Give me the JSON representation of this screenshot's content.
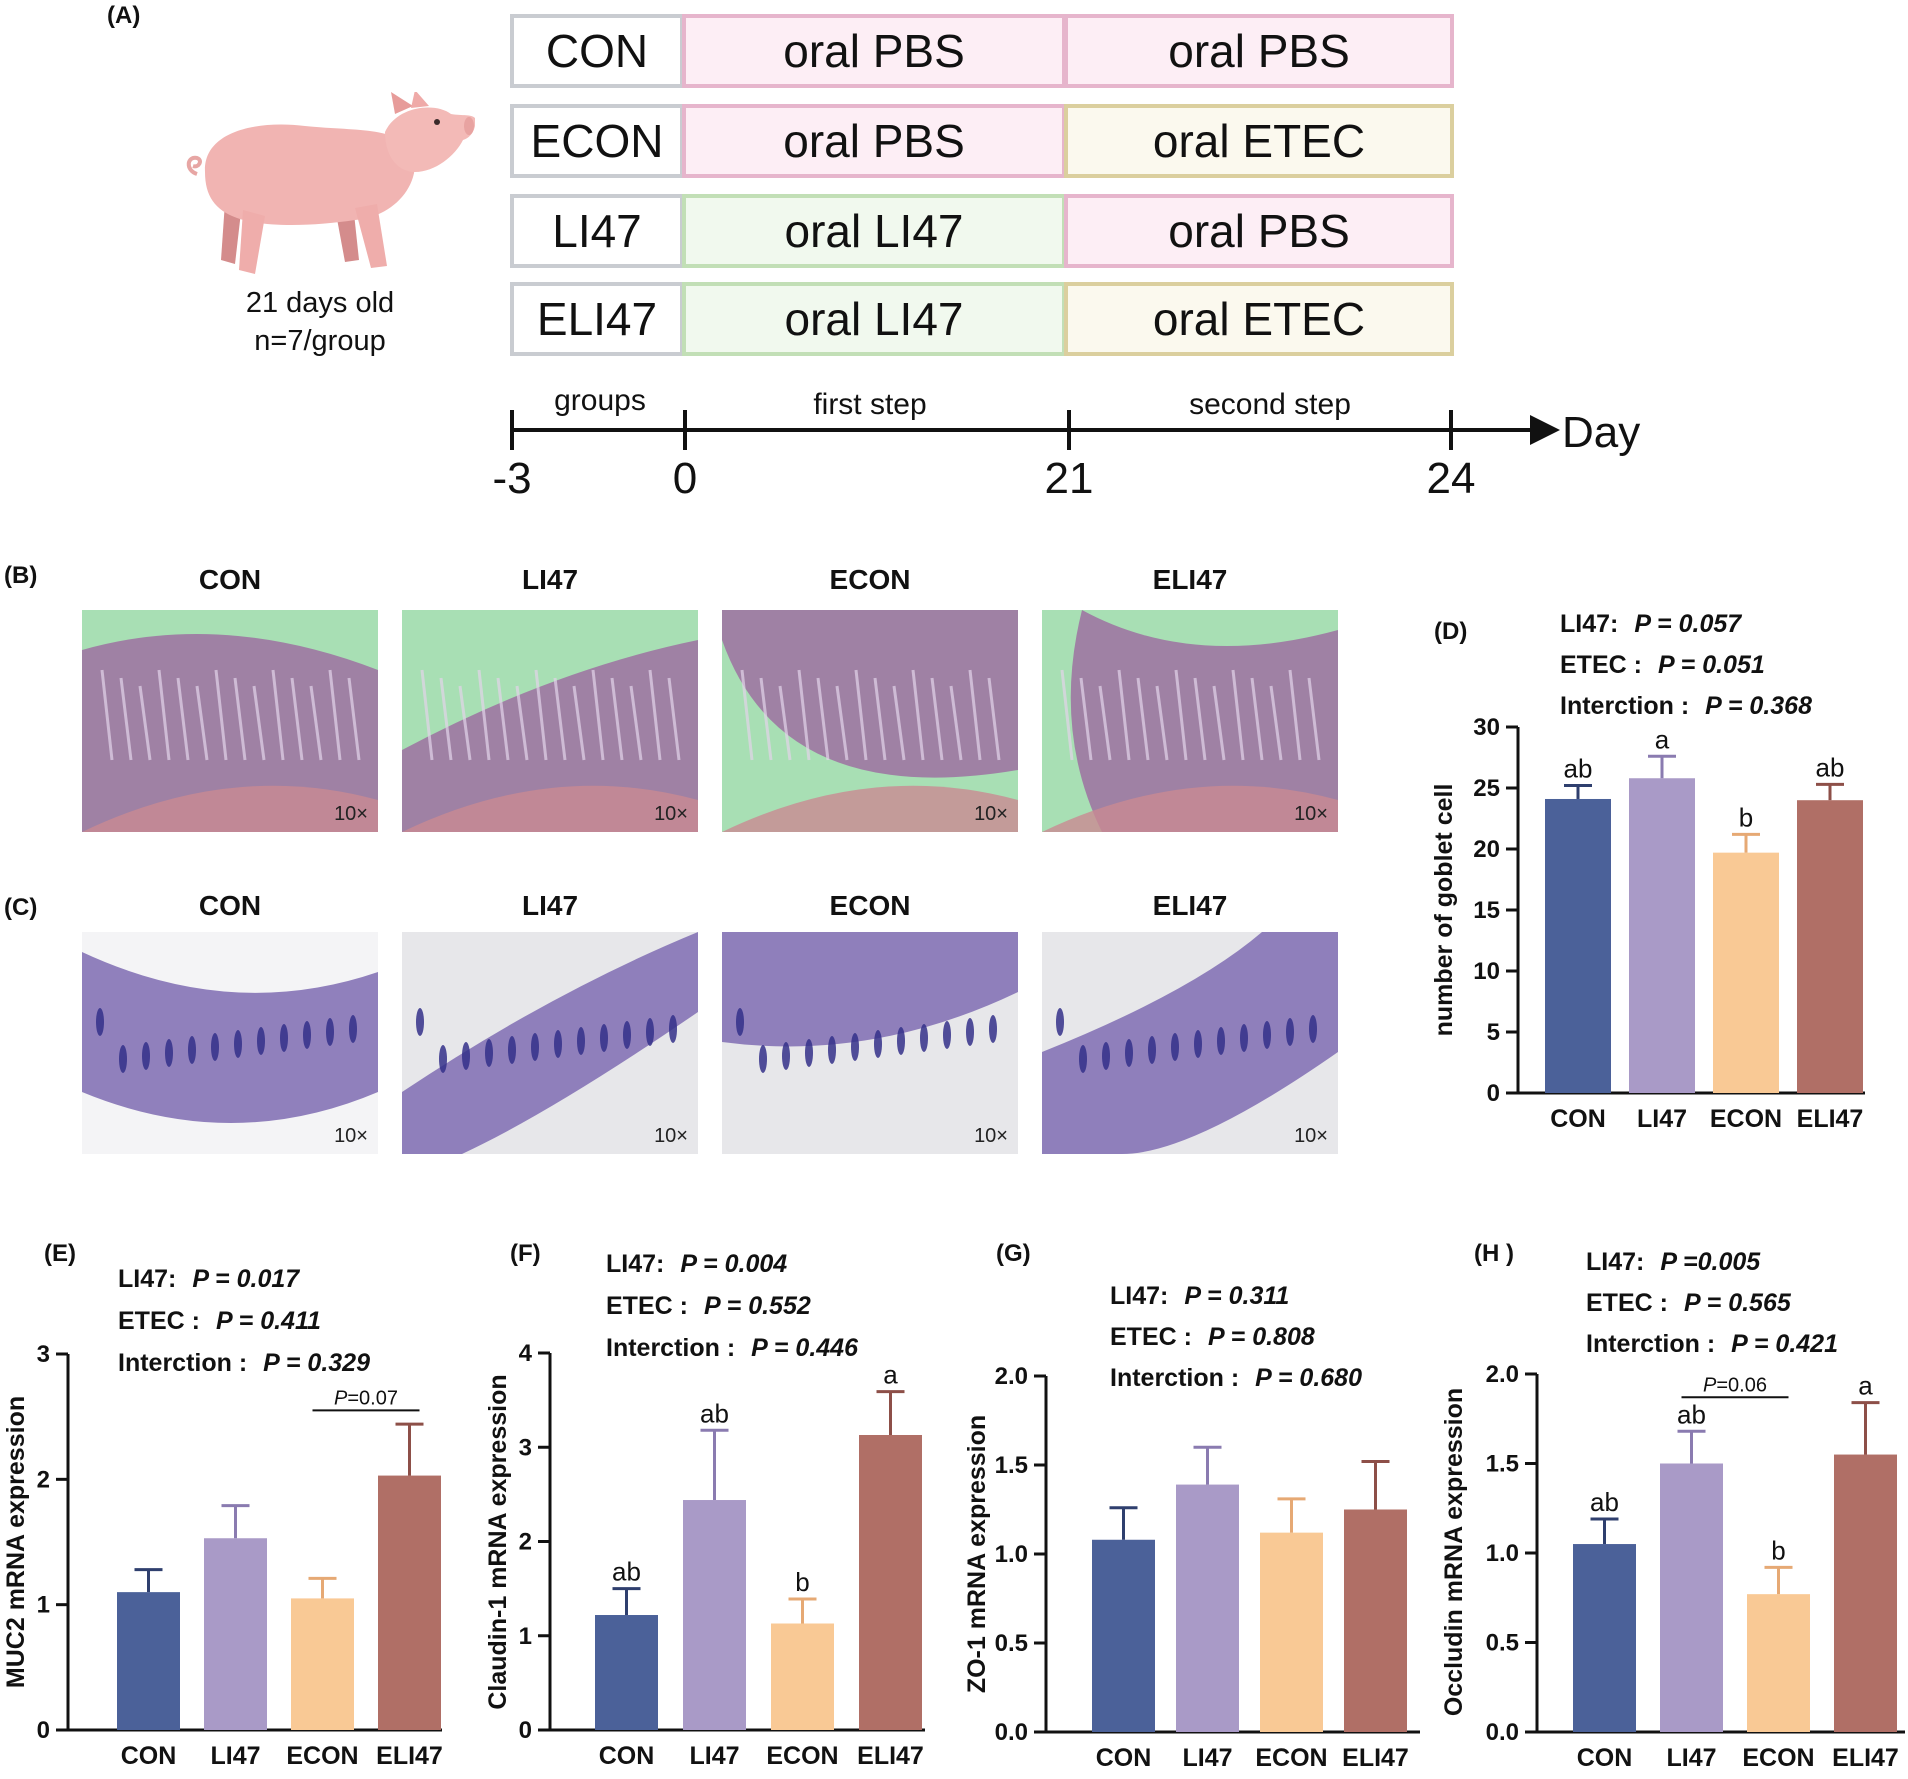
{
  "panel_a": {
    "label": "(A)",
    "pig_caption_line1": "21 days old",
    "pig_caption_line2": "n=7/group",
    "groups": [
      {
        "name": "CON",
        "first": "oral PBS",
        "second": "oral PBS",
        "first_type": "pbs",
        "second_type": "pbs"
      },
      {
        "name": "ECON",
        "first": "oral PBS",
        "second": "oral ETEC",
        "first_type": "pbs",
        "second_type": "etec"
      },
      {
        "name": "LI47",
        "first": "oral LI47",
        "second": "oral PBS",
        "first_type": "li47",
        "second_type": "pbs"
      },
      {
        "name": "ELI47",
        "first": "oral LI47",
        "second": "oral ETEC",
        "first_type": "li47",
        "second_type": "etec"
      }
    ],
    "timeline": {
      "segments": [
        "groups",
        "first step",
        "second step"
      ],
      "ticks": [
        "-3",
        "0",
        "21",
        "24"
      ],
      "axis_label": "Day"
    },
    "colors": {
      "pbs_fill": "#fdeef5",
      "pbs_border": "#e6b5cc",
      "li47_fill": "#f1f9ee",
      "li47_border": "#c2dfb6",
      "etec_fill": "#fbf9ee",
      "etec_border": "#dbcf9e",
      "name_border": "#c9ccd1"
    }
  },
  "panel_b": {
    "label": "(B)",
    "titles": [
      "CON",
      "LI47",
      "ECON",
      "ELI47"
    ],
    "magnification": "10×"
  },
  "panel_c": {
    "label": "(C)",
    "titles": [
      "CON",
      "LI47",
      "ECON",
      "ELI47"
    ],
    "magnification": "10×"
  },
  "chart_data": [
    {
      "id": "D",
      "label": "(D)",
      "type": "bar",
      "ylabel": "number of goblet cell",
      "ylim": [
        0,
        30
      ],
      "yticks": [
        "0",
        "5",
        "10",
        "15",
        "20",
        "25",
        "30"
      ],
      "categories": [
        "CON",
        "LI47",
        "ECON",
        "ELI47"
      ],
      "values": [
        24.1,
        25.8,
        19.7,
        24.0
      ],
      "errors": [
        1.1,
        1.8,
        1.5,
        1.3
      ],
      "letters": [
        "ab",
        "a",
        "b",
        "ab"
      ],
      "stats": [
        {
          "name": "LI47:",
          "p": "P = 0.057"
        },
        {
          "name": "ETEC :",
          "p": "P = 0.051"
        },
        {
          "name": "Interction :",
          "p": "P = 0.368"
        }
      ],
      "bracket": null
    },
    {
      "id": "E",
      "label": "(E)",
      "type": "bar",
      "ylabel": "MUC2 mRNA expression",
      "ylim": [
        0,
        3
      ],
      "yticks": [
        "0",
        "1",
        "2",
        "3"
      ],
      "categories": [
        "CON",
        "LI47",
        "ECON",
        "ELI47"
      ],
      "values": [
        1.1,
        1.53,
        1.05,
        2.03
      ],
      "errors": [
        0.18,
        0.26,
        0.16,
        0.41
      ],
      "letters": [
        "",
        "",
        "",
        ""
      ],
      "stats": [
        {
          "name": "LI47:",
          "p": "P = 0.017"
        },
        {
          "name": "ETEC :",
          "p": "P = 0.411"
        },
        {
          "name": "Interction :",
          "p": "P = 0.329"
        }
      ],
      "bracket": {
        "from": 2,
        "to": 3,
        "p_label": "P",
        "p_value": "=0.07",
        "y": 2.55
      }
    },
    {
      "id": "F",
      "label": "(F)",
      "type": "bar",
      "ylabel": "Claudin-1 mRNA expression",
      "ylim": [
        0,
        4
      ],
      "yticks": [
        "0",
        "1",
        "2",
        "3",
        "4"
      ],
      "categories": [
        "CON",
        "LI47",
        "ECON",
        "ELI47"
      ],
      "values": [
        1.22,
        2.44,
        1.13,
        3.13
      ],
      "errors": [
        0.28,
        0.74,
        0.26,
        0.46
      ],
      "letters": [
        "ab",
        "ab",
        "b",
        "a"
      ],
      "stats": [
        {
          "name": "LI47:",
          "p": "P = 0.004"
        },
        {
          "name": "ETEC :",
          "p": "P = 0.552"
        },
        {
          "name": "Interction :",
          "p": "P = 0.446"
        }
      ],
      "bracket": null
    },
    {
      "id": "G",
      "label": "(G)",
      "type": "bar",
      "ylabel": "ZO-1 mRNA expression",
      "ylim": [
        0,
        2.0
      ],
      "yticks": [
        "0.0",
        "0.5",
        "1.0",
        "1.5",
        "2.0"
      ],
      "categories": [
        "CON",
        "LI47",
        "ECON",
        "ELI47"
      ],
      "values": [
        1.08,
        1.39,
        1.12,
        1.25
      ],
      "errors": [
        0.18,
        0.21,
        0.19,
        0.27
      ],
      "letters": [
        "",
        "",
        "",
        ""
      ],
      "stats": [
        {
          "name": "LI47:",
          "p": "P = 0.311"
        },
        {
          "name": "ETEC :",
          "p": "P = 0.808"
        },
        {
          "name": "Interction :",
          "p": "P = 0.680"
        }
      ],
      "bracket": null
    },
    {
      "id": "H",
      "label": "(H )",
      "type": "bar",
      "ylabel": "Occludin mRNA expression",
      "ylim": [
        0,
        2.0
      ],
      "yticks": [
        "0.0",
        "0.5",
        "1.0",
        "1.5",
        "2.0"
      ],
      "categories": [
        "CON",
        "LI47",
        "ECON",
        "ELI47"
      ],
      "values": [
        1.05,
        1.5,
        0.77,
        1.55
      ],
      "errors": [
        0.14,
        0.18,
        0.15,
        0.29
      ],
      "letters": [
        "ab",
        "ab",
        "b",
        "a"
      ],
      "stats": [
        {
          "name": "LI47:",
          "p": "P =0.005"
        },
        {
          "name": "ETEC :",
          "p": "P = 0.565"
        },
        {
          "name": "Interction :",
          "p": "P = 0.421"
        }
      ],
      "bracket": {
        "from": 1,
        "to": 2,
        "p_label": "P",
        "p_value": "=0.06",
        "y": 1.87
      }
    }
  ],
  "bar_colors": [
    "#4b6199",
    "#a99ac7",
    "#f9c995",
    "#b06f66"
  ],
  "bar_error_colors": [
    "#2f3f6e",
    "#8a7bb0",
    "#e6a974",
    "#8d4f48"
  ]
}
